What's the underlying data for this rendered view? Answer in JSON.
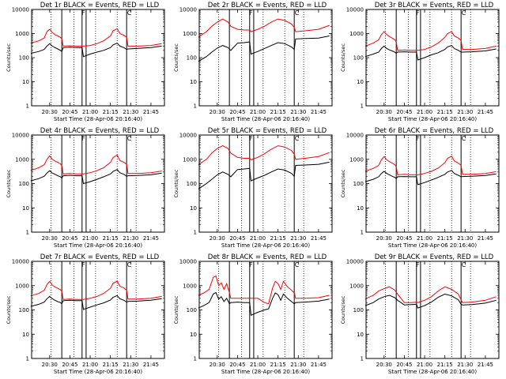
{
  "figure": {
    "panels": [
      {
        "title": "Det 1r BLACK = Events, RED = LLD",
        "ylabel": "Counts/sec",
        "xlabel": "Start Time (28-Apr-06 20:16:40)"
      },
      {
        "title": "Det 2r BLACK = Events, RED = LLD",
        "ylabel": "Counts/sec",
        "xlabel": "Start Time (28-Apr-06 20:16:40)"
      },
      {
        "title": "Det 3r BLACK = Events, RED = LLD",
        "ylabel": "Counts/sec",
        "xlabel": "Start Time (28-Apr-06 20:16:40)"
      },
      {
        "title": "Det 4r BLACK = Events, RED = LLD",
        "ylabel": "Counts/sec",
        "xlabel": "Start Time (28-Apr-06 20:16:40)"
      },
      {
        "title": "Det 5r BLACK = Events, RED = LLD",
        "ylabel": "Counts/sec",
        "xlabel": "Start Time (28-Apr-06 20:16:40)"
      },
      {
        "title": "Det 6r BLACK = Events, RED = LLD",
        "ylabel": "Counts/sec",
        "xlabel": "Start Time (28-Apr-06 20:16:40)"
      },
      {
        "title": "Det 7r BLACK = Events, RED = LLD",
        "ylabel": "Counts/sec",
        "xlabel": "Start Time (28-Apr-06 20:16:40)"
      },
      {
        "title": "Det 8r BLACK = Events, RED = LLD",
        "ylabel": "Counts/sec",
        "xlabel": "Start Time (28-Apr-06 20:16:40)"
      },
      {
        "title": "Det 9r BLACK = Events, RED = LLD",
        "ylabel": "Counts/sec",
        "xlabel": "Start Time (28-Apr-06 20:16:40)"
      }
    ]
  },
  "chart_data": {
    "type": "line",
    "layout": "3x3 grid",
    "yscale": "log",
    "ylim": [
      1,
      10000
    ],
    "yticks": [
      1,
      10,
      100,
      1000,
      10000
    ],
    "ytick_labels": [
      "1",
      "10",
      "100",
      "1000",
      "10000"
    ],
    "xlim": [
      "20:16:40",
      "21:55:00"
    ],
    "xticks": [
      "20:30",
      "20:45",
      "21:00",
      "21:15",
      "21:30",
      "21:45"
    ],
    "grid": false,
    "colors": {
      "events": "#000000",
      "lld": "#ff0000"
    },
    "markers": {
      "dotted_lines": [
        "20:31",
        "20:48",
        "21:04",
        "21:20",
        "21:34"
      ],
      "solid_lines": [
        "20:39",
        "20:54",
        "20:57",
        "21:27"
      ],
      "letters": [
        {
          "label": "F",
          "time": "20:55"
        },
        {
          "label": "C",
          "time": "21:29"
        }
      ]
    },
    "panels": [
      {
        "title": "Det 1r BLACK = Events, RED = LLD",
        "x": [
          "20:16",
          "20:22",
          "20:26",
          "20:28",
          "20:30",
          "20:32",
          "20:34",
          "20:36",
          "20:38",
          "20:39",
          "20:40",
          "20:45",
          "20:50",
          "20:54",
          "20:55",
          "21:00",
          "21:05",
          "21:10",
          "21:15",
          "21:17",
          "21:20",
          "21:22",
          "21:25",
          "21:27",
          "21:28",
          "21:35",
          "21:45",
          "21:53"
        ],
        "series": [
          {
            "name": "LLD",
            "color": "#ff0000",
            "values": [
              400,
              500,
              650,
              1200,
              1500,
              1100,
              900,
              800,
              700,
              600,
              300,
              310,
              300,
              300,
              300,
              320,
              380,
              500,
              800,
              1300,
              1600,
              1000,
              850,
              700,
              300,
              300,
              320,
              380
            ]
          },
          {
            "name": "Events",
            "color": "#000000",
            "values": [
              150,
              180,
              220,
              300,
              380,
              300,
              260,
              230,
              200,
              180,
              260,
              270,
              260,
              260,
              110,
              140,
              170,
              200,
              260,
              340,
              400,
              300,
              260,
              220,
              230,
              240,
              260,
              300
            ]
          }
        ]
      },
      {
        "title": "Det 2r BLACK = Events, RED = LLD",
        "x": [
          "20:16",
          "20:22",
          "20:26",
          "20:30",
          "20:34",
          "20:38",
          "20:40",
          "20:45",
          "20:50",
          "20:54",
          "20:55",
          "21:00",
          "21:05",
          "21:10",
          "21:15",
          "21:20",
          "21:25",
          "21:27",
          "21:28",
          "21:35",
          "21:45",
          "21:53"
        ],
        "series": [
          {
            "name": "LLD",
            "color": "#ff0000",
            "values": [
              700,
              1200,
              2000,
              3000,
              4000,
              3000,
              2000,
              1500,
              1400,
              1400,
              1200,
              1500,
              2000,
              3000,
              4000,
              3500,
              2500,
              1800,
              1200,
              1300,
              1500,
              2200
            ]
          },
          {
            "name": "Events",
            "color": "#000000",
            "values": [
              70,
              110,
              170,
              250,
              320,
              260,
              200,
              400,
              420,
              450,
              140,
              180,
              240,
              320,
              420,
              380,
              280,
              220,
              600,
              620,
              650,
              800
            ]
          }
        ]
      },
      {
        "title": "Det 3r BLACK = Events, RED = LLD",
        "x": [
          "20:16",
          "20:22",
          "20:26",
          "20:28",
          "20:30",
          "20:32",
          "20:34",
          "20:36",
          "20:38",
          "20:39",
          "20:40",
          "20:45",
          "20:50",
          "20:54",
          "20:55",
          "21:00",
          "21:05",
          "21:10",
          "21:15",
          "21:17",
          "21:20",
          "21:22",
          "21:25",
          "21:27",
          "21:28",
          "21:35",
          "21:45",
          "21:53"
        ],
        "series": [
          {
            "name": "LLD",
            "color": "#ff0000",
            "values": [
              300,
              400,
              550,
              900,
              1200,
              900,
              750,
              650,
              550,
              450,
              200,
              210,
              200,
              200,
              200,
              220,
              280,
              400,
              700,
              1000,
              1200,
              800,
              650,
              520,
              220,
              220,
              240,
              300
            ]
          },
          {
            "name": "Events",
            "color": "#000000",
            "values": [
              110,
              140,
              170,
              240,
              300,
              240,
              210,
              190,
              170,
              150,
              170,
              175,
              170,
              170,
              80,
              100,
              130,
              160,
              220,
              280,
              320,
              240,
              200,
              170,
              170,
              175,
              190,
              230
            ]
          }
        ]
      },
      {
        "title": "Det 4r BLACK = Events, RED = LLD",
        "x": [
          "20:16",
          "20:22",
          "20:26",
          "20:28",
          "20:30",
          "20:32",
          "20:34",
          "20:36",
          "20:38",
          "20:39",
          "20:40",
          "20:45",
          "20:50",
          "20:54",
          "20:55",
          "21:00",
          "21:05",
          "21:10",
          "21:15",
          "21:17",
          "21:20",
          "21:22",
          "21:25",
          "21:27",
          "21:28",
          "21:35",
          "21:45",
          "21:53"
        ],
        "series": [
          {
            "name": "LLD",
            "color": "#ff0000",
            "values": [
              350,
              450,
              600,
              1000,
              1400,
              1000,
              850,
              750,
              650,
              550,
              250,
              260,
              250,
              250,
              250,
              280,
              340,
              450,
              750,
              1200,
              1500,
              900,
              750,
              620,
              260,
              260,
              280,
              330
            ]
          },
          {
            "name": "Events",
            "color": "#000000",
            "values": [
              130,
              160,
              200,
              270,
              340,
              270,
              240,
              210,
              190,
              170,
              210,
              220,
              210,
              210,
              100,
              120,
              150,
              190,
              250,
              320,
              380,
              280,
              240,
              200,
              210,
              215,
              230,
              270
            ]
          }
        ]
      },
      {
        "title": "Det 5r BLACK = Events, RED = LLD",
        "x": [
          "20:16",
          "20:22",
          "20:26",
          "20:30",
          "20:34",
          "20:38",
          "20:40",
          "20:45",
          "20:50",
          "20:54",
          "20:55",
          "21:00",
          "21:05",
          "21:10",
          "21:15",
          "21:20",
          "21:25",
          "21:27",
          "21:28",
          "21:35",
          "21:45",
          "21:53"
        ],
        "series": [
          {
            "name": "LLD",
            "color": "#ff0000",
            "values": [
              600,
              1000,
              1800,
              2800,
              3600,
              2800,
              1800,
              1200,
              1100,
              1100,
              950,
              1200,
              1700,
              2600,
              3600,
              3200,
              2300,
              1600,
              1000,
              1100,
              1300,
              1900
            ]
          },
          {
            "name": "Events",
            "color": "#000000",
            "values": [
              60,
              100,
              150,
              230,
              300,
              240,
              190,
              380,
              400,
              420,
              130,
              170,
              220,
              300,
              400,
              360,
              260,
              200,
              560,
              580,
              620,
              760
            ]
          }
        ]
      },
      {
        "title": "Det 6r BLACK = Events, RED = LLD",
        "x": [
          "20:16",
          "20:22",
          "20:26",
          "20:28",
          "20:30",
          "20:32",
          "20:34",
          "20:36",
          "20:38",
          "20:39",
          "20:40",
          "20:45",
          "20:50",
          "20:54",
          "20:55",
          "21:00",
          "21:05",
          "21:10",
          "21:15",
          "21:17",
          "21:20",
          "21:22",
          "21:25",
          "21:27",
          "21:28",
          "21:35",
          "21:45",
          "21:53"
        ],
        "series": [
          {
            "name": "LLD",
            "color": "#ff0000",
            "values": [
              320,
              420,
              560,
              950,
              1300,
              950,
              800,
              700,
              600,
              500,
              230,
              240,
              230,
              230,
              230,
              260,
              320,
              430,
              720,
              1100,
              1350,
              850,
              700,
              560,
              240,
              240,
              260,
              310
            ]
          },
          {
            "name": "Events",
            "color": "#000000",
            "values": [
              120,
              150,
              190,
              260,
              320,
              260,
              230,
              200,
              180,
              160,
              190,
              195,
              190,
              190,
              90,
              110,
              140,
              180,
              240,
              300,
              350,
              260,
              220,
              190,
              195,
              200,
              215,
              250
            ]
          }
        ]
      },
      {
        "title": "Det 7r BLACK = Events, RED = LLD",
        "x": [
          "20:16",
          "20:22",
          "20:26",
          "20:28",
          "20:30",
          "20:32",
          "20:34",
          "20:36",
          "20:38",
          "20:39",
          "20:40",
          "20:45",
          "20:50",
          "20:54",
          "20:55",
          "21:00",
          "21:05",
          "21:10",
          "21:15",
          "21:17",
          "21:20",
          "21:22",
          "21:25",
          "21:27",
          "21:28",
          "21:35",
          "21:45",
          "21:53"
        ],
        "series": [
          {
            "name": "LLD",
            "color": "#ff0000",
            "values": [
              380,
              480,
              640,
              1100,
              1500,
              1050,
              880,
              780,
              680,
              580,
              270,
              280,
              270,
              270,
              270,
              300,
              360,
              480,
              780,
              1250,
              1550,
              950,
              800,
              650,
              280,
              280,
              300,
              360
            ]
          },
          {
            "name": "Events",
            "color": "#000000",
            "values": [
              140,
              170,
              210,
              290,
              360,
              290,
              250,
              220,
              200,
              180,
              240,
              250,
              240,
              240,
              105,
              130,
              160,
              195,
              255,
              330,
              390,
              290,
              250,
              210,
              225,
              230,
              250,
              290
            ]
          }
        ]
      },
      {
        "title": "Det 8r BLACK = Events, RED = LLD",
        "x": [
          "20:16",
          "20:20",
          "20:24",
          "20:27",
          "20:29",
          "20:31",
          "20:33",
          "20:35",
          "20:37",
          "20:39",
          "20:40",
          "20:45",
          "20:50",
          "20:54",
          "20:55",
          "21:00",
          "21:05",
          "21:08",
          "21:11",
          "21:13",
          "21:15",
          "21:17",
          "21:19",
          "21:22",
          "21:25",
          "21:27",
          "21:28",
          "21:35",
          "21:45",
          "21:53"
        ],
        "series": [
          {
            "name": "LLD",
            "color": "#ff0000",
            "values": [
              400,
              500,
              700,
              2200,
              2500,
              1000,
              1300,
              700,
              1200,
              500,
              300,
              300,
              300,
              300,
              300,
              300,
              200,
              180,
              800,
              1500,
              1200,
              700,
              1500,
              900,
              650,
              500,
              300,
              300,
              320,
              400
            ]
          },
          {
            "name": "Events",
            "color": "#000000",
            "values": [
              120,
              150,
              200,
              450,
              520,
              280,
              350,
              220,
              300,
              180,
              200,
              210,
              200,
              200,
              60,
              80,
              100,
              110,
              300,
              500,
              420,
              250,
              450,
              300,
              220,
              180,
              200,
              210,
              230,
              280
            ]
          }
        ]
      },
      {
        "title": "Det 9r BLACK = Events, RED = LLD",
        "x": [
          "20:16",
          "20:22",
          "20:26",
          "20:30",
          "20:34",
          "20:38",
          "20:40",
          "20:45",
          "20:50",
          "20:54",
          "20:55",
          "21:00",
          "21:05",
          "21:10",
          "21:15",
          "21:20",
          "21:25",
          "21:27",
          "21:28",
          "21:35",
          "21:45",
          "21:53"
        ],
        "series": [
          {
            "name": "LLD",
            "color": "#ff0000",
            "values": [
              280,
              400,
              600,
              750,
              900,
              650,
              450,
              200,
              200,
              210,
              200,
              250,
              350,
              600,
              900,
              700,
              450,
              260,
              200,
              210,
              250,
              350
            ]
          },
          {
            "name": "Events",
            "color": "#000000",
            "values": [
              150,
              200,
              280,
              350,
              400,
              320,
              250,
              160,
              165,
              170,
              120,
              150,
              210,
              330,
              450,
              380,
              260,
              170,
              160,
              165,
              190,
              250
            ]
          }
        ]
      }
    ]
  }
}
